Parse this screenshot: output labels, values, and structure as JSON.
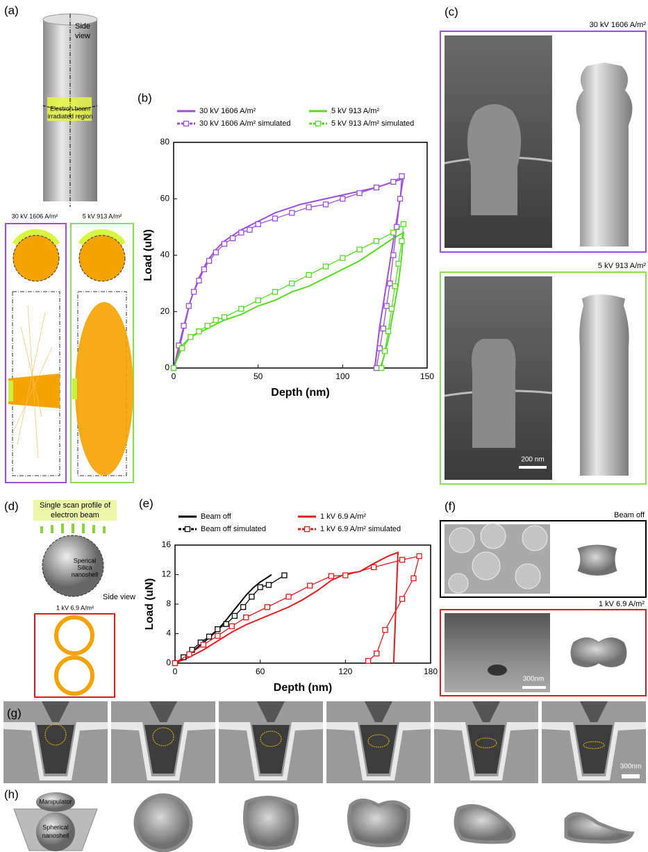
{
  "panels": {
    "a": {
      "label": "(a)",
      "side_view": [
        "Side",
        "view"
      ],
      "region": [
        "Electron beam",
        "irradiated region"
      ],
      "cond1": "30 kV 1606 A/m²",
      "cond2": "5 kV 913 A/m²"
    },
    "c": {
      "label": "(c)",
      "cond1": "30 kV 1606 A/m²",
      "cond2": "5 kV 913 A/m²",
      "scale": "200 nm"
    },
    "d": {
      "label": "(d)",
      "profile": [
        "Single scan profile of",
        "electron beam"
      ],
      "shell": [
        "Sperical",
        "Silica",
        "nanoshell"
      ],
      "side_view": "Side view",
      "cond": "1 kV 6.9 A/m²"
    },
    "f": {
      "label": "(f)",
      "cond1": "Beam off",
      "cond2": "1 kV 6.9 A/m²",
      "scale": "300nm"
    },
    "g": {
      "label": "(g)",
      "scale": "300nm"
    },
    "h": {
      "label": "(h)",
      "manipulator": "Manipulator",
      "shell": [
        "Spherical",
        "nanoshell"
      ]
    }
  },
  "chart_data": [
    {
      "type": "line",
      "panel_label": "(b)",
      "xlabel": "Depth (nm)",
      "ylabel": "Load (uN)",
      "xlim": [
        0,
        150
      ],
      "xticks": [
        0,
        50,
        100,
        150
      ],
      "ylim": [
        0,
        80
      ],
      "yticks": [
        0,
        20,
        40,
        60,
        80
      ],
      "series": [
        {
          "name": "30 kV 1606 A/m²",
          "color": "#9d4edd",
          "marker": false,
          "x": [
            0,
            3,
            6,
            10,
            15,
            20,
            25,
            30,
            40,
            50,
            60,
            75,
            90,
            105,
            120,
            130,
            135,
            136,
            134,
            130,
            126,
            122,
            119
          ],
          "values": [
            0,
            6,
            14,
            24,
            32,
            38,
            42,
            45,
            49,
            52,
            55,
            58,
            60,
            62,
            64,
            66,
            67,
            68,
            60,
            45,
            30,
            15,
            0
          ]
        },
        {
          "name": "5 kV 913 A/m²",
          "color": "#55dd22",
          "marker": false,
          "x": [
            0,
            5,
            10,
            20,
            30,
            40,
            50,
            60,
            70,
            80,
            90,
            100,
            110,
            120,
            130,
            136,
            135,
            133,
            130,
            127,
            124,
            122
          ],
          "values": [
            0,
            8,
            11,
            14,
            17,
            19,
            22,
            24,
            27,
            29,
            32,
            35,
            38,
            42,
            46,
            48,
            40,
            30,
            20,
            10,
            3,
            0
          ]
        },
        {
          "name": "30 kV 1606 A/m² simulated",
          "color": "#9d4edd",
          "marker": true,
          "x": [
            0,
            3,
            6,
            9,
            12,
            15,
            18,
            21,
            25,
            30,
            35,
            40,
            45,
            50,
            60,
            70,
            80,
            90,
            100,
            110,
            120,
            130,
            135,
            134,
            132,
            130,
            128,
            126,
            124,
            122,
            120
          ],
          "values": [
            0,
            8,
            15,
            22,
            27,
            31,
            35,
            38,
            41,
            44,
            46,
            48,
            49,
            51,
            53,
            55,
            57,
            58,
            60,
            62,
            64,
            66,
            68,
            60,
            50,
            40,
            30,
            22,
            14,
            7,
            0
          ]
        },
        {
          "name": "5 kV 913 A/m² simulated",
          "color": "#55dd22",
          "marker": true,
          "x": [
            0,
            5,
            10,
            15,
            20,
            25,
            30,
            40,
            50,
            60,
            70,
            80,
            90,
            100,
            110,
            120,
            130,
            136,
            135,
            133,
            131,
            129,
            127,
            125,
            123
          ],
          "values": [
            0,
            7,
            11,
            13,
            15,
            17,
            18,
            21,
            24,
            27,
            30,
            33,
            36,
            39,
            42,
            45,
            48,
            51,
            45,
            37,
            29,
            21,
            13,
            6,
            0
          ]
        }
      ]
    },
    {
      "type": "line",
      "panel_label": "(e)",
      "xlabel": "Depth (nm)",
      "ylabel": "Load (uN)",
      "xlim": [
        0,
        180
      ],
      "xticks": [
        0,
        60,
        120,
        180
      ],
      "ylim": [
        0,
        16
      ],
      "yticks": [
        0,
        4,
        8,
        12,
        16
      ],
      "series": [
        {
          "name": "Beam off",
          "color": "#000000",
          "marker": false,
          "x": [
            0,
            5,
            10,
            15,
            20,
            25,
            30,
            35,
            40,
            45,
            50,
            55,
            60,
            65,
            68
          ],
          "values": [
            0,
            0.6,
            1.3,
            2.0,
            2.8,
            3.6,
            4.5,
            5.6,
            6.8,
            8.0,
            9.2,
            10.2,
            11.0,
            11.6,
            12
          ]
        },
        {
          "name": "1 kV 6.9 A/m²",
          "color": "#e31a1c",
          "marker": false,
          "x": [
            0,
            10,
            20,
            30,
            40,
            50,
            60,
            70,
            80,
            90,
            100,
            110,
            120,
            130,
            140,
            150,
            157,
            156,
            155,
            154
          ],
          "values": [
            0,
            0.8,
            1.8,
            3.0,
            4.2,
            5.2,
            6.0,
            6.8,
            7.6,
            8.6,
            9.8,
            11.2,
            12.1,
            12.4,
            13.5,
            14.5,
            15,
            10,
            5,
            0
          ]
        },
        {
          "name": "Beam off simulated",
          "color": "#000000",
          "marker": true,
          "x": [
            0,
            6,
            12,
            18,
            24,
            30,
            36,
            42,
            48,
            54,
            60,
            66,
            77
          ],
          "values": [
            0,
            0.8,
            1.8,
            2.8,
            3.6,
            4.6,
            5.3,
            6.4,
            7.6,
            9.0,
            10.3,
            10.6,
            11.9
          ]
        },
        {
          "name": "1 kV 6.9 A/m² simulated",
          "color": "#e31a1c",
          "marker": true,
          "x": [
            0,
            10,
            20,
            30,
            40,
            50,
            65,
            80,
            95,
            110,
            120,
            140,
            160,
            172,
            168,
            160,
            148,
            142,
            136
          ],
          "values": [
            0,
            1.2,
            2.5,
            3.7,
            5.0,
            6.2,
            7.6,
            9.0,
            10.5,
            11.8,
            11.9,
            13.0,
            14.0,
            14.5,
            11.5,
            8.7,
            4.5,
            1.3,
            0.3
          ]
        }
      ]
    }
  ]
}
